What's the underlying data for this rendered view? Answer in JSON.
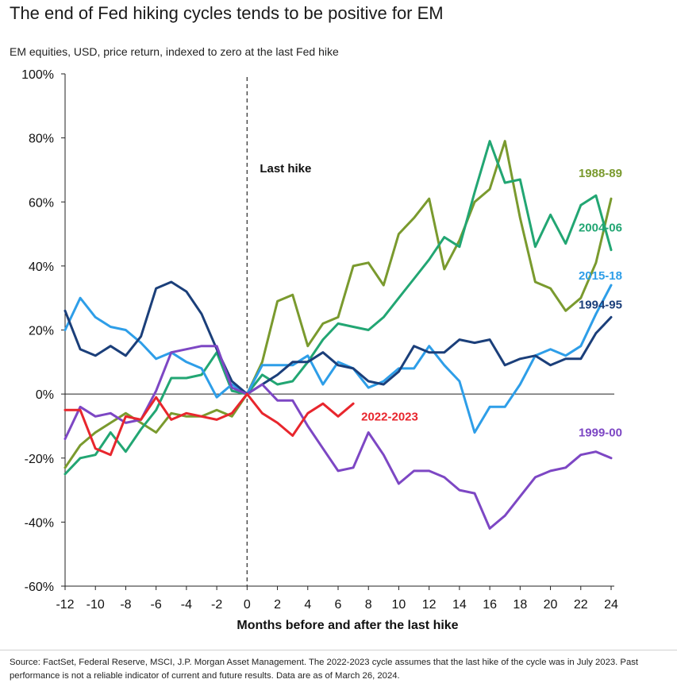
{
  "title": "The end of Fed hiking cycles tends to be positive for EM",
  "subtitle": "EM equities, USD, price return, indexed to zero at the last Fed hike",
  "source": "Source: FactSet, Federal Reserve, MSCI, J.P. Morgan Asset Management. The 2022-2023 cycle assumes that the last hike of the cycle was in July 2023. Past performance is not a reliable indicator of current and future results. Data are as of March 26, 2024.",
  "chart_data": {
    "type": "line",
    "title": "The end of Fed hiking cycles tends to be positive for EM",
    "xlabel": "Months before and after the last hike",
    "ylabel": "",
    "xlim": [
      -12,
      24
    ],
    "ylim": [
      -60,
      100
    ],
    "x_ticks": [
      "-12",
      "-10",
      "-8",
      "-6",
      "-4",
      "-2",
      "0",
      "2",
      "4",
      "6",
      "8",
      "10",
      "12",
      "14",
      "16",
      "18",
      "20",
      "22",
      "24"
    ],
    "y_ticks": [
      "-60%",
      "-40%",
      "-20%",
      "0%",
      "20%",
      "40%",
      "60%",
      "80%",
      "100%"
    ],
    "grid": false,
    "annotation": {
      "text": "Last hike",
      "x": 0
    },
    "series": [
      {
        "name": "1988-89",
        "color": "#7a9a2e",
        "x": [
          -12,
          -11,
          -10,
          -9,
          -8,
          -7,
          -6,
          -5,
          -4,
          -3,
          -2,
          -1,
          0,
          1,
          2,
          3,
          4,
          5,
          6,
          7,
          8,
          9,
          10,
          11,
          12,
          13,
          14,
          15,
          16,
          17,
          18,
          19,
          20,
          21,
          22,
          23,
          24
        ],
        "y": [
          -23,
          -16,
          -12,
          -9,
          -6,
          -9,
          -12,
          -6,
          -7,
          -7,
          -5,
          -7,
          0,
          10,
          29,
          31,
          15,
          22,
          24,
          40,
          41,
          34,
          50,
          55,
          61,
          39,
          48,
          60,
          64,
          79,
          55,
          35,
          33,
          26,
          30,
          41,
          61
        ]
      },
      {
        "name": "2004-06",
        "color": "#22a673",
        "x": [
          -12,
          -11,
          -10,
          -9,
          -8,
          -7,
          -6,
          -5,
          -4,
          -3,
          -2,
          -1,
          0,
          1,
          2,
          3,
          4,
          5,
          6,
          7,
          8,
          9,
          10,
          11,
          12,
          13,
          14,
          15,
          16,
          17,
          18,
          19,
          20,
          21,
          22,
          23,
          24
        ],
        "y": [
          -25,
          -20,
          -19,
          -12,
          -18,
          -11,
          -5,
          5,
          5,
          6,
          13,
          1,
          0,
          6,
          3,
          4,
          10,
          17,
          22,
          21,
          20,
          24,
          30,
          36,
          42,
          49,
          46,
          63,
          79,
          66,
          67,
          46,
          56,
          47,
          59,
          62,
          45
        ]
      },
      {
        "name": "2015-18",
        "color": "#2e9ee8",
        "x": [
          -12,
          -11,
          -10,
          -9,
          -8,
          -7,
          -6,
          -5,
          -4,
          -3,
          -2,
          -1,
          0,
          1,
          2,
          3,
          4,
          5,
          6,
          7,
          8,
          9,
          10,
          11,
          12,
          13,
          14,
          15,
          16,
          17,
          18,
          19,
          20,
          21,
          22,
          23,
          24
        ],
        "y": [
          20,
          30,
          24,
          21,
          20,
          16,
          11,
          13,
          10,
          8,
          -1,
          3,
          0,
          9,
          9,
          9,
          12,
          3,
          10,
          8,
          2,
          4,
          8,
          8,
          15,
          9,
          4,
          -12,
          -4,
          -4,
          3,
          12,
          14,
          12,
          15,
          25,
          34
        ]
      },
      {
        "name": "1994-95",
        "color": "#1b3f7a",
        "x": [
          -12,
          -11,
          -10,
          -9,
          -8,
          -7,
          -6,
          -5,
          -4,
          -3,
          -2,
          -1,
          0,
          1,
          2,
          3,
          4,
          5,
          6,
          7,
          8,
          9,
          10,
          11,
          12,
          13,
          14,
          15,
          16,
          17,
          18,
          19,
          20,
          21,
          22,
          23,
          24
        ],
        "y": [
          26,
          14,
          12,
          15,
          12,
          18,
          33,
          35,
          32,
          25,
          14,
          4,
          0,
          3,
          6,
          10,
          10,
          13,
          9,
          8,
          4,
          3,
          7,
          15,
          13,
          13,
          17,
          16,
          17,
          9,
          11,
          12,
          9,
          11,
          11,
          19,
          24
        ]
      },
      {
        "name": "1999-00",
        "color": "#7d47c4",
        "x": [
          -12,
          -11,
          -10,
          -9,
          -8,
          -7,
          -6,
          -5,
          -4,
          -3,
          -2,
          -1,
          0,
          1,
          2,
          3,
          4,
          5,
          6,
          7,
          8,
          9,
          10,
          11,
          12,
          13,
          14,
          15,
          16,
          17,
          18,
          19,
          20,
          21,
          22,
          23,
          24
        ],
        "y": [
          -14,
          -4,
          -7,
          -6,
          -9,
          -8,
          1,
          13,
          14,
          15,
          15,
          2,
          0,
          3,
          -2,
          -2,
          -10,
          -17,
          -24,
          -23,
          -12,
          -19,
          -28,
          -24,
          -24,
          -26,
          -30,
          -31,
          -42,
          -38,
          -32,
          -26,
          -24,
          -23,
          -19,
          -18,
          -20
        ]
      },
      {
        "name": "2022-2023",
        "color": "#e8262d",
        "x": [
          -12,
          -11,
          -10,
          -9,
          -8,
          -7,
          -6,
          -5,
          -4,
          -3,
          -2,
          -1,
          0,
          1,
          2,
          3,
          4,
          5,
          6,
          7
        ],
        "y": [
          -5,
          -5,
          -17,
          -19,
          -7,
          -8,
          -1,
          -8,
          -6,
          -7,
          -8,
          -6,
          0,
          -6,
          -9,
          -13,
          -6,
          -3,
          -7,
          -3
        ]
      }
    ],
    "series_label_positions": {
      "1988-89": [
        24,
        69
      ],
      "2004-06": [
        24,
        52
      ],
      "2015-18": [
        24,
        37
      ],
      "1994-95": [
        24,
        28
      ],
      "1999-00": [
        24,
        -12
      ],
      "2022-2023": [
        7,
        -7
      ]
    }
  }
}
